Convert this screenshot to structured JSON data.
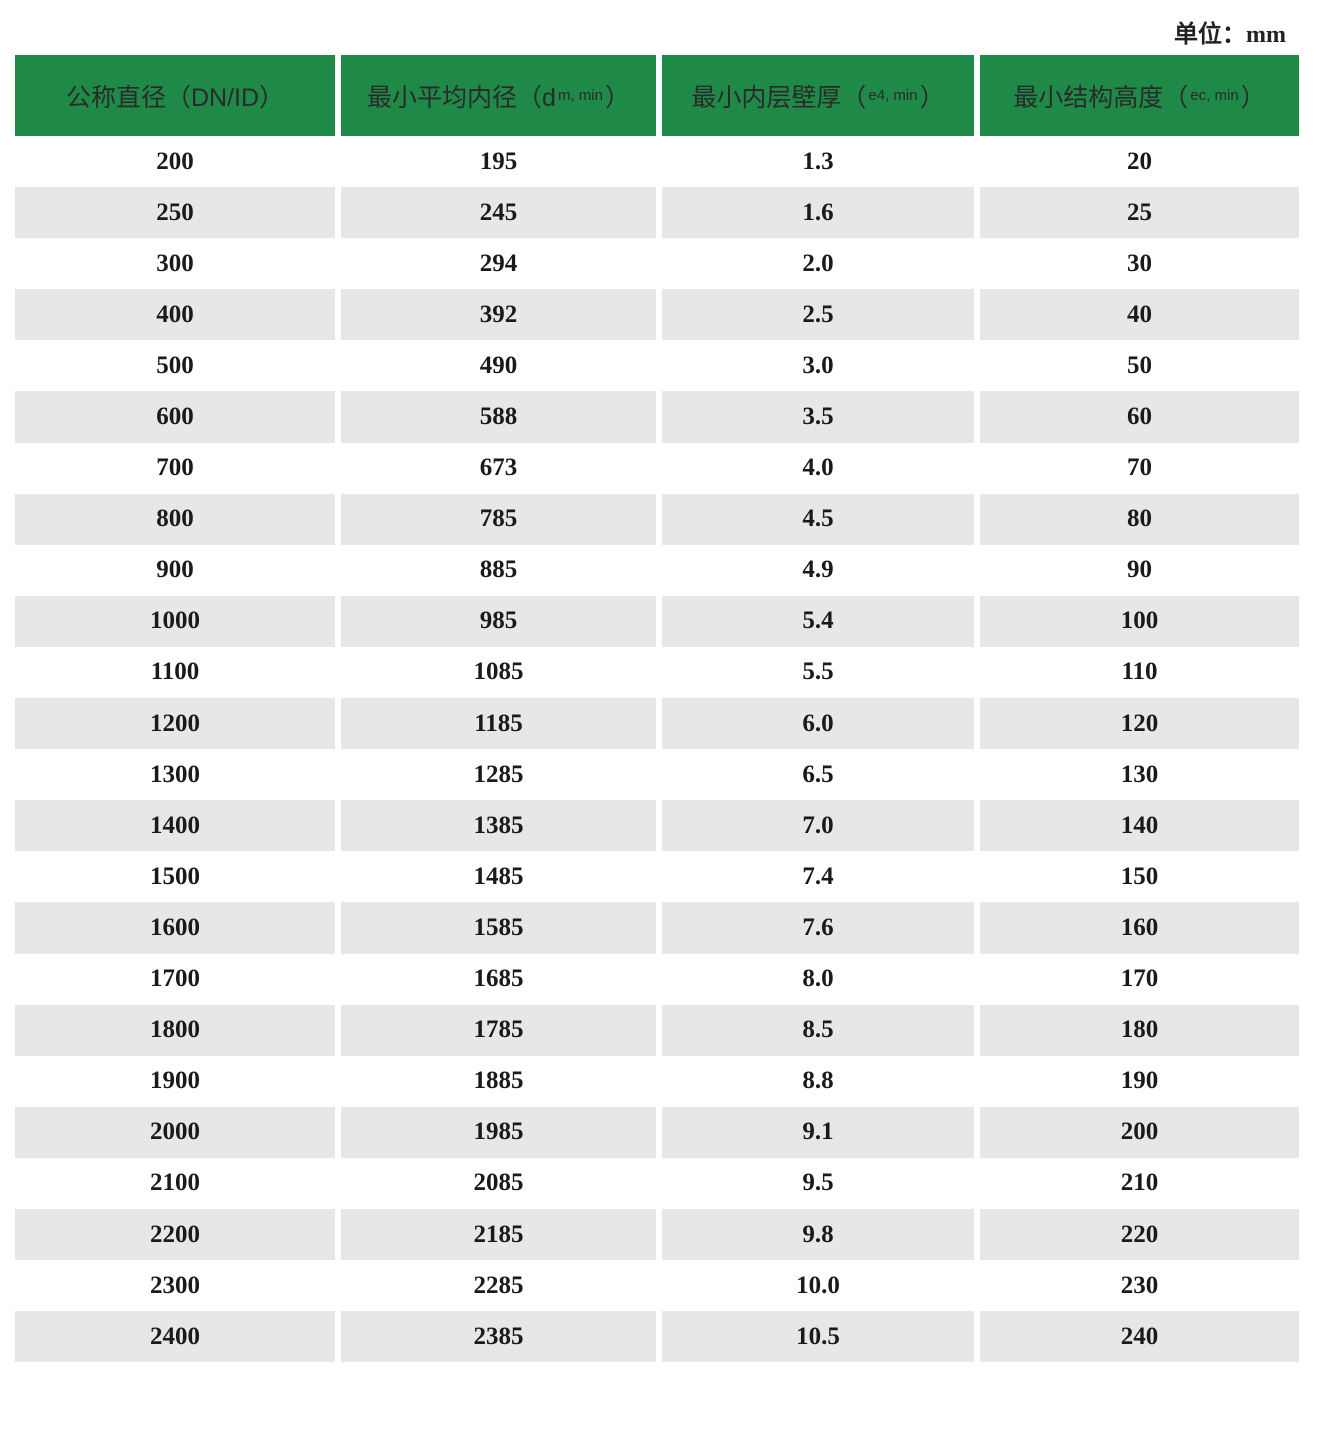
{
  "unit_label": "单位：mm",
  "header": [
    {
      "main": "公称直径（DN/ID）",
      "sub": ""
    },
    {
      "main": "最小平均内径（d",
      "sub": "m, min",
      "end": "）"
    },
    {
      "main": "最小内层壁厚（",
      "sub": "e4, min",
      "end": "）"
    },
    {
      "main": "最小结构高度（",
      "sub": "ec, min",
      "end": "）"
    }
  ],
  "rows": [
    [
      "200",
      "195",
      "1.3",
      "20"
    ],
    [
      "250",
      "245",
      "1.6",
      "25"
    ],
    [
      "300",
      "294",
      "2.0",
      "30"
    ],
    [
      "400",
      "392",
      "2.5",
      "40"
    ],
    [
      "500",
      "490",
      "3.0",
      "50"
    ],
    [
      "600",
      "588",
      "3.5",
      "60"
    ],
    [
      "700",
      "673",
      "4.0",
      "70"
    ],
    [
      "800",
      "785",
      "4.5",
      "80"
    ],
    [
      "900",
      "885",
      "4.9",
      "90"
    ],
    [
      "1000",
      "985",
      "5.4",
      "100"
    ],
    [
      "1100",
      "1085",
      "5.5",
      "110"
    ],
    [
      "1200",
      "1185",
      "6.0",
      "120"
    ],
    [
      "1300",
      "1285",
      "6.5",
      "130"
    ],
    [
      "1400",
      "1385",
      "7.0",
      "140"
    ],
    [
      "1500",
      "1485",
      "7.4",
      "150"
    ],
    [
      "1600",
      "1585",
      "7.6",
      "160"
    ],
    [
      "1700",
      "1685",
      "8.0",
      "170"
    ],
    [
      "1800",
      "1785",
      "8.5",
      "180"
    ],
    [
      "1900",
      "1885",
      "8.8",
      "190"
    ],
    [
      "2000",
      "1985",
      "9.1",
      "200"
    ],
    [
      "2100",
      "2085",
      "9.5",
      "210"
    ],
    [
      "2200",
      "2185",
      "9.8",
      "220"
    ],
    [
      "2300",
      "2285",
      "10.0",
      "230"
    ],
    [
      "2400",
      "2385",
      "10.5",
      "240"
    ]
  ],
  "colors": {
    "header_bg": "#1f8a48",
    "alt_row_bg": "#e6e7e9"
  }
}
